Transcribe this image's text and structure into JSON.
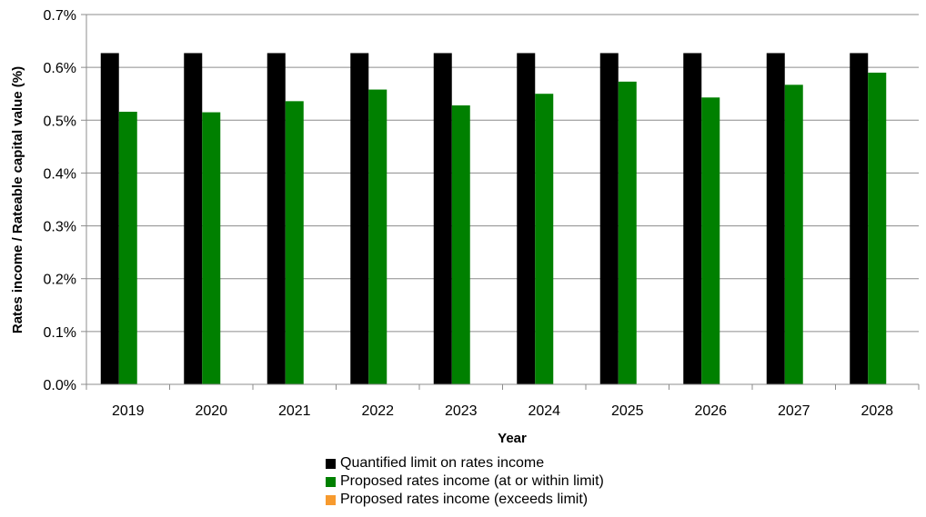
{
  "chart_data": {
    "type": "bar",
    "categories": [
      "2019",
      "2020",
      "2021",
      "2022",
      "2023",
      "2024",
      "2025",
      "2026",
      "2027",
      "2028"
    ],
    "series": [
      {
        "name": "Quantified limit on rates income",
        "color": "#000000",
        "values": [
          0.627,
          0.627,
          0.627,
          0.627,
          0.627,
          0.627,
          0.627,
          0.627,
          0.627,
          0.627
        ]
      },
      {
        "name": "Proposed rates income (at or within limit)",
        "color": "#008000",
        "values": [
          0.516,
          0.515,
          0.536,
          0.558,
          0.528,
          0.55,
          0.573,
          0.543,
          0.567,
          0.59
        ]
      },
      {
        "name": "Proposed rates income (exceeds limit)",
        "color": "#F79A2E",
        "values": [
          0,
          0,
          0,
          0,
          0,
          0,
          0,
          0,
          0,
          0
        ]
      }
    ],
    "y_ticks": [
      "0.0%",
      "0.1%",
      "0.2%",
      "0.3%",
      "0.4%",
      "0.5%",
      "0.6%",
      "0.7%"
    ],
    "ylim": [
      0,
      0.7
    ],
    "xlabel": "Year",
    "ylabel": "Rates income / Rateable capital value (%)",
    "grid": true,
    "legend_position": "bottom"
  }
}
